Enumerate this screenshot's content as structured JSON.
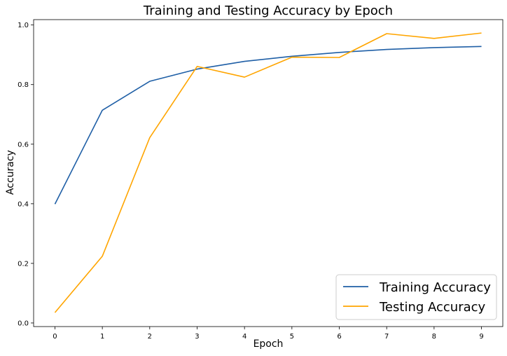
{
  "chart_data": {
    "type": "line",
    "title": "Training and Testing Accuracy by Epoch",
    "xlabel": "Epoch",
    "ylabel": "Accuracy",
    "x": [
      0,
      1,
      2,
      3,
      4,
      5,
      6,
      7,
      8,
      9
    ],
    "xlim": [
      -0.45,
      9.45
    ],
    "ylim": [
      -0.012,
      1.018
    ],
    "xticks": [
      0,
      1,
      2,
      3,
      4,
      5,
      6,
      7,
      8,
      9
    ],
    "yticks": [
      0.0,
      0.2,
      0.4,
      0.6,
      0.8,
      1.0
    ],
    "ytick_labels": [
      "0.0",
      "0.2",
      "0.4",
      "0.6",
      "0.8",
      "1.0"
    ],
    "grid": false,
    "legend_position": "bottom-right",
    "series": [
      {
        "name": "Training Accuracy",
        "color": "#1f5fa6",
        "values": [
          0.399,
          0.714,
          0.811,
          0.852,
          0.878,
          0.895,
          0.908,
          0.918,
          0.924,
          0.928
        ]
      },
      {
        "name": "Testing Accuracy",
        "color": "#ffa500",
        "values": [
          0.035,
          0.224,
          0.622,
          0.861,
          0.825,
          0.892,
          0.891,
          0.971,
          0.955,
          0.973
        ]
      }
    ]
  }
}
